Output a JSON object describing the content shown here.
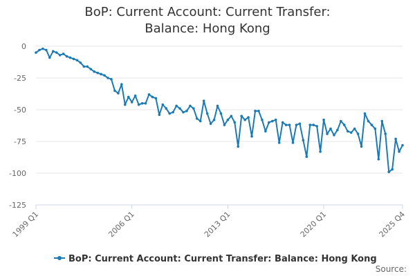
{
  "chart_data": {
    "type": "line",
    "title": "BoP: Current Account: Current Transfer: Balance: Hong Kong",
    "xlabel": "",
    "ylabel": "",
    "ylim": [
      -125,
      0
    ],
    "y_ticks": [
      0,
      -25,
      -50,
      -75,
      -100,
      -125
    ],
    "x_tick_labels": [
      "1999 Q1",
      "2006 Q1",
      "2013 Q1",
      "2020 Q1",
      "2025 Q4"
    ],
    "grid": true,
    "legend_position": "bottom",
    "color": "#1a7ab5",
    "source_label": "Source:",
    "series": [
      {
        "name": "BoP: Current Account: Current Transfer: Balance: Hong Kong",
        "values": [
          -5,
          -3,
          -2,
          -3,
          -9,
          -4,
          -5,
          -7,
          -6,
          -8,
          -9,
          -10,
          -11,
          -13,
          -16,
          -16,
          -18,
          -20,
          -21,
          -22,
          -23,
          -25,
          -26,
          -35,
          -37,
          -30,
          -46,
          -40,
          -44,
          -39,
          -46,
          -45,
          -45,
          -38,
          -40,
          -41,
          -54,
          -46,
          -49,
          -53,
          -52,
          -47,
          -49,
          -52,
          -51,
          -47,
          -49,
          -57,
          -59,
          -43,
          -53,
          -61,
          -58,
          -47,
          -53,
          -62,
          -58,
          -55,
          -60,
          -79,
          -55,
          -58,
          -56,
          -71,
          -51,
          -51,
          -58,
          -67,
          -60,
          -59,
          -58,
          -76,
          -60,
          -62,
          -62,
          -76,
          -62,
          -61,
          -74,
          -87,
          -62,
          -62,
          -63,
          -83,
          -58,
          -69,
          -65,
          -70,
          -66,
          -59,
          -62,
          -67,
          -68,
          -65,
          -69,
          -79,
          -53,
          -59,
          -62,
          -65,
          -89,
          -59,
          -69,
          -99,
          -97,
          -73,
          -83,
          -78
        ]
      }
    ]
  }
}
